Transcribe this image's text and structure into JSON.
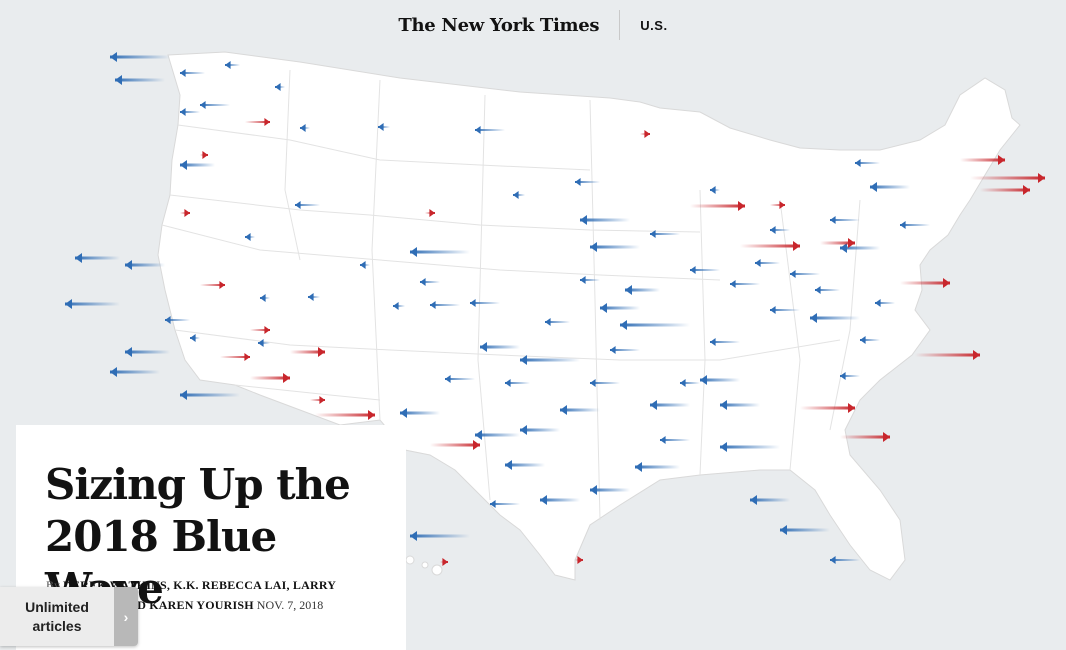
{
  "header": {
    "logo": "The New York Times",
    "section": "U.S."
  },
  "article": {
    "headline": "Sizing Up the 2018 Blue Wave",
    "byline_prefix": "By",
    "authors": "Derek Watkins, K.K. Rebecca Lai, Larry Buchanan and Karen Yourish",
    "date": "Nov. 7, 2018"
  },
  "promo": {
    "label": "Unlimited articles",
    "chevron": "›"
  },
  "colors": {
    "democratic_shift": "#2f6db5",
    "republican_shift": "#c8262c",
    "page_background": "#e9ecee",
    "map_land": "#ffffff"
  }
}
